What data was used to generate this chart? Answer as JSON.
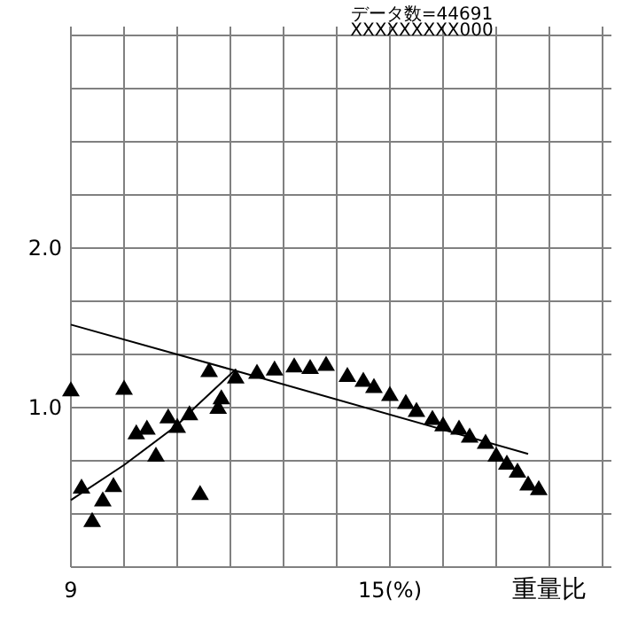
{
  "chart_data": {
    "type": "scatter",
    "xlabel": "重量比",
    "annotations": [
      "データ数=44691",
      "XXXXXXXXX000"
    ],
    "xlim": [
      9,
      19
    ],
    "xticks": [
      9,
      {
        "value": 10,
        "label": null
      },
      {
        "value": 11,
        "label": null
      },
      {
        "value": 12,
        "label": null
      },
      {
        "value": 13,
        "label": null
      },
      {
        "value": 14,
        "label": null
      },
      {
        "value": 15,
        "label": "15(%)"
      },
      {
        "value": 16,
        "label": null
      },
      {
        "value": 17,
        "label": null
      },
      {
        "value": 18,
        "label": null
      },
      {
        "value": 19,
        "label": null
      }
    ],
    "ylim": [
      0,
      3.333
    ],
    "yticks": [
      {
        "value": 0.333,
        "label": null
      },
      {
        "value": 0.667,
        "label": null
      },
      {
        "value": 1,
        "label": "1.0"
      },
      {
        "value": 1.333,
        "label": null
      },
      {
        "value": 1.667,
        "label": null
      },
      {
        "value": 2,
        "label": "2.0"
      },
      {
        "value": 2.333,
        "label": null
      },
      {
        "value": 2.667,
        "label": null
      },
      {
        "value": 3,
        "label": null
      },
      {
        "value": 3.333,
        "label": null
      }
    ],
    "grid": true,
    "series": [
      {
        "marker": "triangle",
        "color": "#000000",
        "x": [
          9,
          10,
          11.6,
          9.2,
          9.4,
          9.6,
          9.8,
          10.23,
          10.43,
          10.6,
          10.83,
          11,
          11.23,
          11.43,
          11.77,
          11.83,
          12.1,
          12.5,
          12.83,
          13.2,
          13.5,
          13.8,
          14.2,
          14.5,
          14.7,
          15,
          15.3,
          15.5,
          15.8,
          16,
          16.3,
          16.5,
          16.8,
          17,
          17.2,
          17.4,
          17.6,
          17.8
        ],
        "values": [
          1.11,
          1.12,
          1.23,
          0.5,
          0.29,
          0.42,
          0.51,
          0.84,
          0.87,
          0.7,
          0.94,
          0.88,
          0.96,
          0.46,
          1,
          1.06,
          1.19,
          1.22,
          1.24,
          1.26,
          1.25,
          1.27,
          1.2,
          1.17,
          1.13,
          1.08,
          1.03,
          0.98,
          0.93,
          0.89,
          0.87,
          0.82,
          0.78,
          0.7,
          0.65,
          0.6,
          0.52,
          0.49
        ]
      },
      {
        "type": "line",
        "marker": "none",
        "color": "#000000",
        "x": [
          9,
          12,
          17.6
        ],
        "values": [
          1.52,
          1.24,
          0.71
        ]
      },
      {
        "type": "line",
        "marker": "none",
        "color": "#000000",
        "x": [
          9,
          10,
          11,
          11.33,
          12.1
        ],
        "values": [
          0.42,
          0.64,
          0.89,
          1,
          1.24
        ]
      }
    ]
  }
}
